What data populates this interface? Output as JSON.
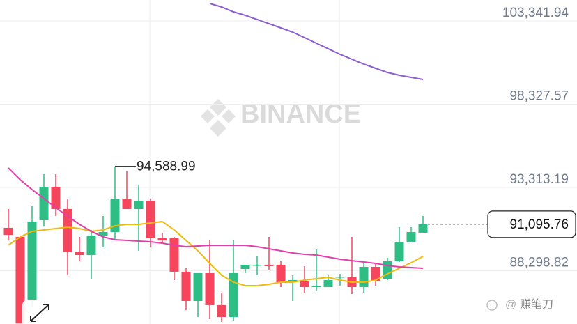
{
  "chart_data": {
    "type": "candlestick",
    "watermark": "BINANCE",
    "source_mark": "赚笔刀",
    "ylim": [
      85093,
      104600
    ],
    "yticks": [
      {
        "value": 103341.94,
        "label": "103,341.94"
      },
      {
        "value": 98327.57,
        "label": "98,327.57"
      },
      {
        "value": 93313.19,
        "label": "93,313.19"
      },
      {
        "value": 88298.82,
        "label": "88,298.82"
      }
    ],
    "grid": true,
    "up_color": "#2ebd85",
    "down_color": "#f6465d",
    "open": [
      90883,
      90337,
      86478,
      91344,
      93357,
      92015,
      89414,
      89246,
      90421,
      90631,
      92644,
      92015,
      92518,
      90253,
      90253,
      88240,
      86478,
      88156,
      86226,
      85513,
      88407,
      88659,
      88659,
      88659,
      87610,
      87652,
      87317,
      87317,
      87904,
      87946,
      87317,
      88533,
      87820,
      88869,
      90044,
      90589
    ],
    "high": [
      92015,
      90421,
      92225,
      94113,
      94113,
      92644,
      90337,
      90757,
      91595,
      94588.99,
      94322,
      93483,
      92644,
      90589,
      90337,
      88449,
      88156,
      90127,
      86981,
      90127,
      88659,
      89162,
      90337,
      88869,
      88030,
      88575,
      89582,
      88030,
      88114,
      90337,
      88869,
      88743,
      89079,
      90924,
      90924,
      91595
    ],
    "low": [
      90127,
      85120,
      86142,
      90966,
      91595,
      88030,
      88869,
      87820,
      89708,
      90127,
      92015,
      89498,
      89708,
      89918,
      87736,
      85932,
      85513,
      85387,
      85219,
      85303,
      88156,
      88030,
      88323,
      87317,
      86478,
      86981,
      87065,
      87317,
      87400,
      86897,
      86981,
      87400,
      87736,
      88827,
      90001,
      90589
    ],
    "close": [
      90462,
      85120,
      91260,
      93357,
      92015,
      89414,
      89246,
      90421,
      90631,
      92644,
      92015,
      92518,
      90253,
      90127,
      88240,
      86478,
      88156,
      86226,
      85513,
      88156,
      88659,
      88659,
      88575,
      87568,
      87736,
      87317,
      87400,
      87736,
      87946,
      87317,
      88533,
      87694,
      88869,
      90044,
      90631,
      91095.76
    ],
    "series": [
      {
        "color": "#f0b90b",
        "values": [
          89834,
          90337,
          90673,
          90757,
          90841,
          90924,
          90841,
          90673,
          90757,
          91008,
          91092,
          91092,
          91176,
          91260,
          90757,
          90127,
          89498,
          88743,
          88030,
          87610,
          87400,
          87400,
          87484,
          87610,
          87610,
          87736,
          87820,
          87904,
          87736,
          87610,
          87610,
          87736,
          88114,
          88449,
          88785,
          89162
        ]
      },
      {
        "color": "#e040a8",
        "values": [
          94490,
          93777,
          93189,
          92644,
          92099,
          91595,
          91092,
          90673,
          90337,
          90169,
          90127,
          90085,
          90044,
          89960,
          89834,
          89750,
          89792,
          89834,
          89834,
          89834,
          89834,
          89750,
          89624,
          89498,
          89372,
          89288,
          89246,
          89120,
          88995,
          88911,
          88827,
          88743,
          88617,
          88533,
          88491,
          88449
        ]
      },
      {
        "color": "#8e5dd0",
        "values": [
          null,
          null,
          null,
          null,
          null,
          null,
          null,
          null,
          null,
          null,
          null,
          null,
          null,
          null,
          null,
          null,
          null,
          104390,
          104181,
          103887,
          103677,
          103426,
          103174,
          102922,
          102670,
          102335,
          101999,
          101665,
          101329,
          101034,
          100741,
          100489,
          100237,
          100069,
          99944,
          99818
        ]
      }
    ],
    "high_marker": {
      "value": 94588.99,
      "label": "94,588.99"
    },
    "last_price": {
      "value": 91095.76,
      "label": "91,095.76"
    }
  }
}
